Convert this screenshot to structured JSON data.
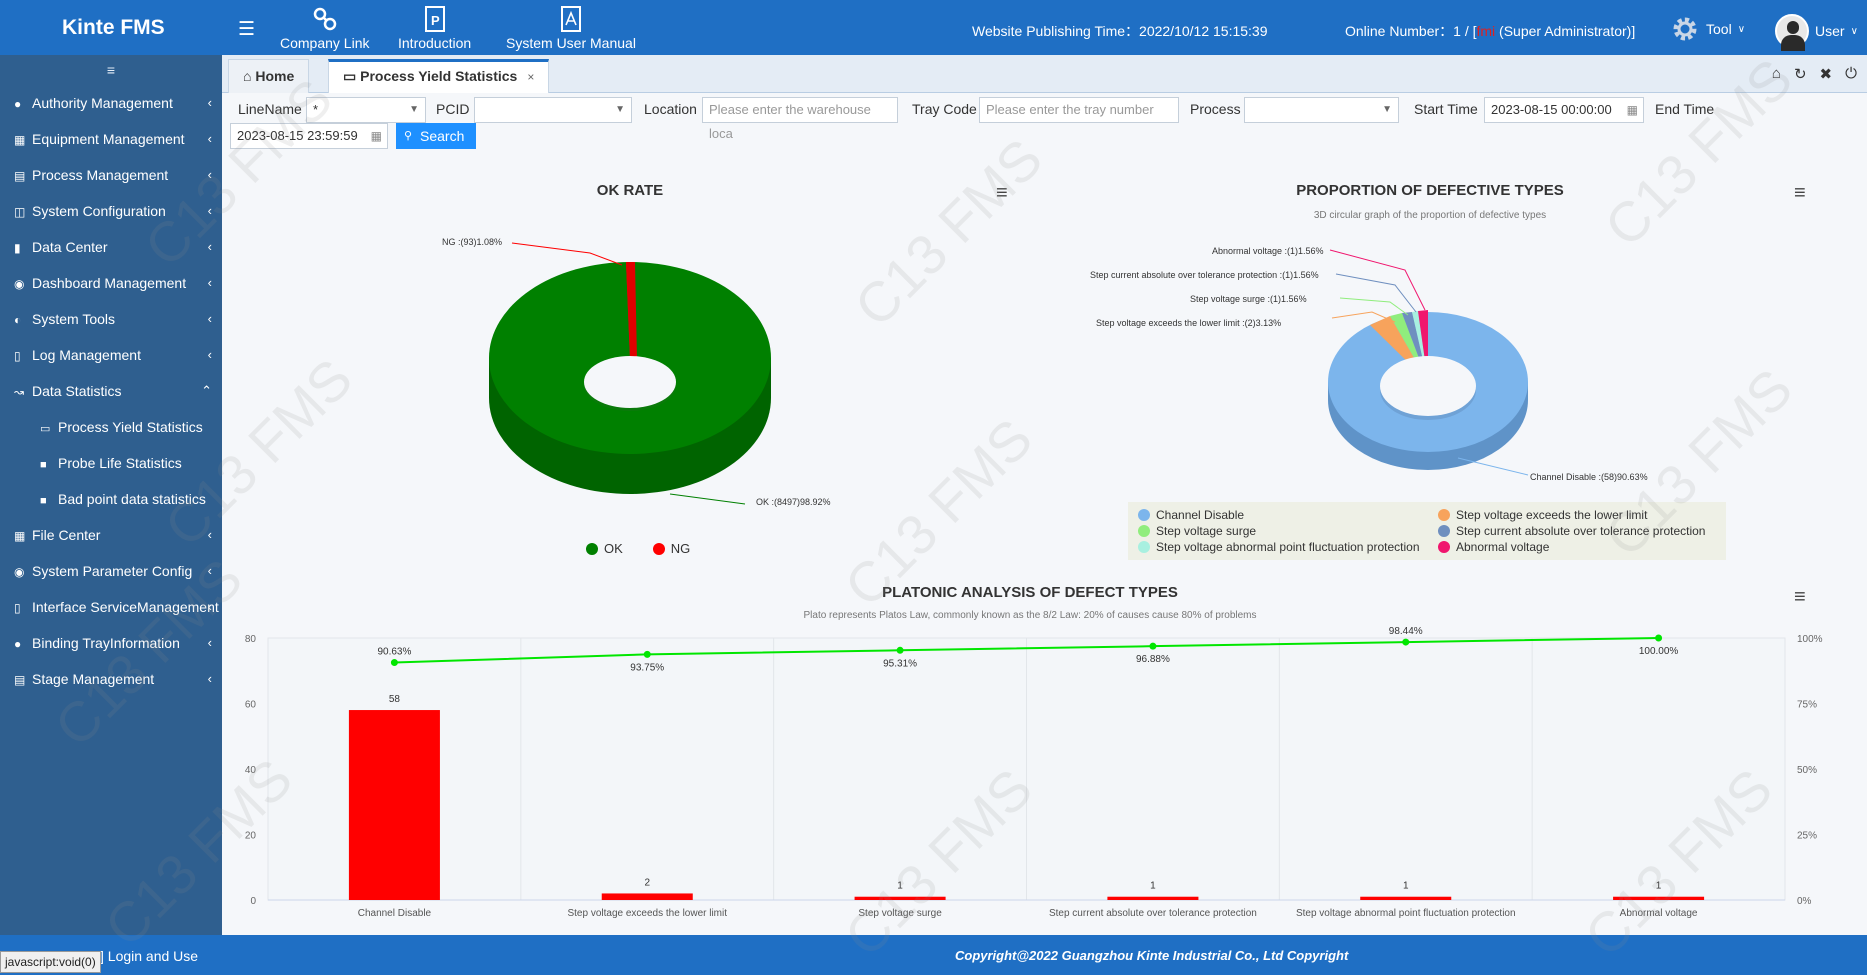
{
  "header": {
    "brand": "Kinte FMS",
    "links": [
      {
        "label": "Company Link"
      },
      {
        "label": "Introduction"
      },
      {
        "label": "System User Manual"
      }
    ],
    "publish_time": "Website Publishing Time：2022/10/12 15:15:39",
    "online_prefix": "Online Number：1 / [",
    "online_user": "fmi",
    "online_suffix": " (Super Administrator)]",
    "tool_label": "Tool",
    "user_label": "User"
  },
  "sidebar": {
    "items": [
      {
        "label": "Authority Management",
        "icon": "user-icon"
      },
      {
        "label": "Equipment Management",
        "icon": "grid-icon"
      },
      {
        "label": "Process Management",
        "icon": "table-icon"
      },
      {
        "label": "System Configuration",
        "icon": "windows-icon"
      },
      {
        "label": "Data Center",
        "icon": "folder-icon"
      },
      {
        "label": "Dashboard Management",
        "icon": "dashboard-icon"
      },
      {
        "label": "System Tools",
        "icon": "globe-icon"
      },
      {
        "label": "Log Management",
        "icon": "file-icon"
      },
      {
        "label": "Data Statistics",
        "icon": "chart-icon"
      }
    ],
    "subitems": [
      {
        "label": "Process Yield Statistics"
      },
      {
        "label": "Probe Life Statistics"
      },
      {
        "label": "Bad point data statistics"
      }
    ],
    "items2": [
      {
        "label": "File Center"
      },
      {
        "label": "System Parameter Config"
      },
      {
        "label": "Interface ServiceManagement"
      },
      {
        "label": "Binding TrayInformation"
      },
      {
        "label": "Stage Management"
      }
    ]
  },
  "tabs": {
    "home": "Home",
    "active": "Process Yield Statistics",
    "close": "×"
  },
  "filters": {
    "linename_label": "LineName",
    "linename_value": "*",
    "pcid_label": "PCID",
    "pcid_value": "",
    "location_label": "Location",
    "location_placeholder": "Please enter the warehouse loca",
    "tray_label": "Tray Code",
    "tray_placeholder": "Please enter the tray number",
    "process_label": "Process",
    "process_value": "",
    "start_label": "Start Time",
    "start_value": "2023-08-15 00:00:00",
    "end_label": "End Time",
    "end_value": "2023-08-15 23:59:59",
    "search_label": "Search"
  },
  "ok_rate": {
    "title": "OK RATE",
    "ng_label": "NG :(93)1.08%",
    "ok_label": "OK :(8497)98.92%",
    "legend_ok": "OK",
    "legend_ng": "NG",
    "ok_color": "#008000",
    "ng_color": "#ff0000"
  },
  "defect_pie": {
    "title": "PROPORTION OF DEFECTIVE TYPES",
    "subtitle": "3D circular graph of the proportion of defective types",
    "labels": [
      "Abnormal voltage :(1)1.56%",
      "Step current absolute over tolerance protection :(1)1.56%",
      "Step voltage surge :(1)1.56%",
      "Step voltage exceeds the lower limit :(2)3.13%",
      "Channel Disable :(58)90.63%"
    ],
    "legend": [
      {
        "name": "Channel Disable",
        "color": "#7cb5ec"
      },
      {
        "name": "Step voltage exceeds the lower limit",
        "color": "#f7a35c"
      },
      {
        "name": "Step voltage surge",
        "color": "#90ed7d"
      },
      {
        "name": "Step current absolute over tolerance protection",
        "color": "#6f8fbf"
      },
      {
        "name": "Step voltage abnormal point fluctuation protection",
        "color": "#a8f0e0"
      },
      {
        "name": "Abnormal voltage",
        "color": "#f0166e"
      }
    ]
  },
  "chart_data": {
    "type": "bar",
    "title": "PLATONIC ANALYSIS OF DEFECT TYPES",
    "subtitle": "Plato represents Platos Law, commonly known as the 8/2 Law: 20% of causes cause 80% of problems",
    "categories": [
      "Channel Disable",
      "Step voltage exceeds the lower limit",
      "Step voltage surge",
      "Step current absolute over tolerance protection",
      "Step voltage abnormal point fluctuation protection",
      "Abnormal voltage"
    ],
    "values": [
      58,
      2,
      1,
      1,
      1,
      1
    ],
    "cumulative": [
      90.63,
      93.75,
      95.31,
      96.88,
      98.44,
      100.0
    ],
    "cumulative_labels": [
      "90.63%",
      "93.75%",
      "95.31%",
      "96.88%",
      "98.44%",
      "100.00%"
    ],
    "ylim": [
      0,
      80
    ],
    "yticks": [
      "0",
      "20",
      "40",
      "60",
      "80"
    ],
    "y2lim": [
      0,
      100
    ],
    "y2ticks": [
      "0%",
      "25%",
      "50%",
      "75%",
      "100%"
    ],
    "bar_color": "#ff0000",
    "line_color": "#00e600"
  },
  "footer": {
    "login": "] Login and Use",
    "copyright": "Copyright@2022 Guangzhou Kinte Industrial Co., Ltd Copyright",
    "status": "javascript:void(0)"
  },
  "watermark": "C13 FMS"
}
